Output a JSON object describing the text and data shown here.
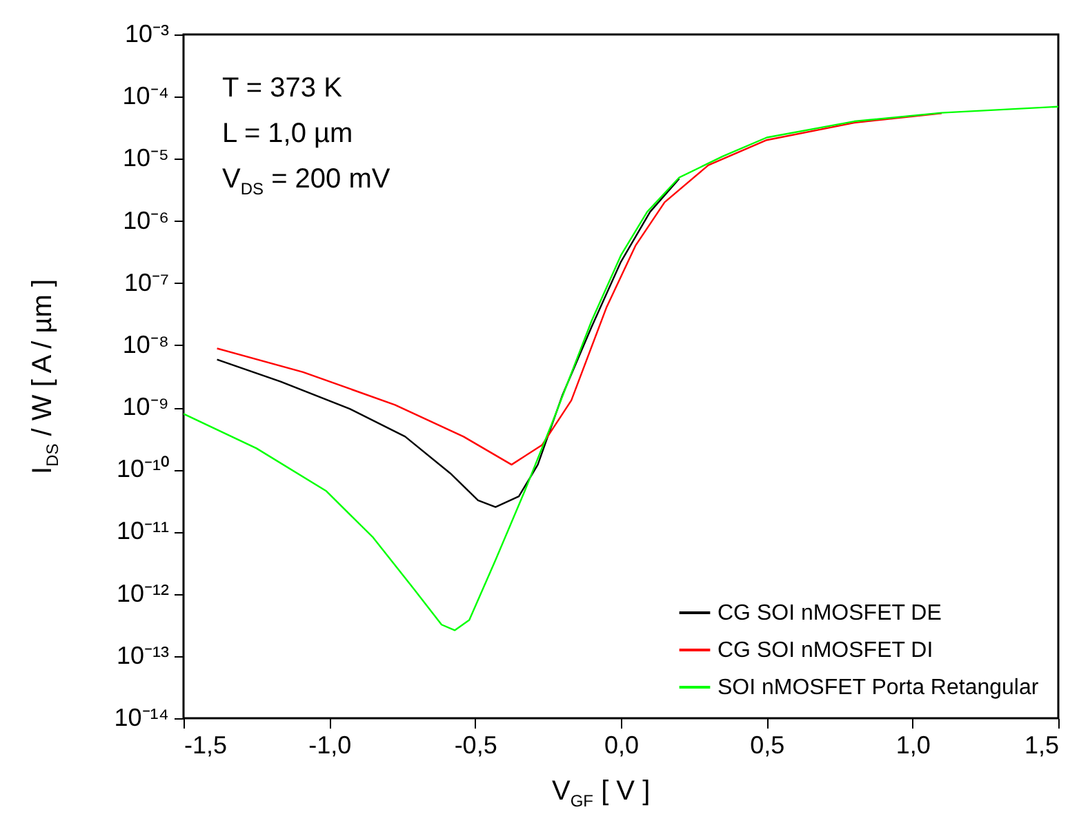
{
  "chart_data": {
    "type": "line",
    "xlabel": "V$_{GF}$ [ V ]",
    "ylabel": "I$_{DS}$ / W [ A / µm ]",
    "annotations": [
      "T = 373 K",
      "L = 1,0 µm",
      "V$_{DS}$ = 200 mV"
    ],
    "log": "y",
    "grid": false,
    "legend": "bottom right",
    "line_style": "solid",
    "xlim": [
      -1.5,
      1.5
    ],
    "xticks": [
      {
        "value": -1.5,
        "label": "-1,5"
      },
      {
        "value": -1.0,
        "label": "-1,0"
      },
      {
        "value": -0.5,
        "label": "-0,5"
      },
      {
        "value": 0.0,
        "label": "0,0"
      },
      {
        "value": 0.5,
        "label": "0,5"
      },
      {
        "value": 1.0,
        "label": "1,0"
      },
      {
        "value": 1.5,
        "label": "1,5"
      }
    ],
    "ylim": [
      1e-14,
      0.001
    ],
    "yticks": [
      {
        "value": 1e-14,
        "label": "10⁻¹⁴"
      },
      {
        "value": 1e-13,
        "label": "10⁻¹³"
      },
      {
        "value": 1e-12,
        "label": "10⁻¹²"
      },
      {
        "value": 1e-11,
        "label": "10⁻¹¹"
      },
      {
        "value": 1e-10,
        "label": "10⁻¹⁰"
      },
      {
        "value": 1e-09,
        "label": "10⁻⁹"
      },
      {
        "value": 1e-08,
        "label": "10⁻⁸"
      },
      {
        "value": 1e-07,
        "label": "10⁻⁷"
      },
      {
        "value": 1e-06,
        "label": "10⁻⁶"
      },
      {
        "value": 1e-05,
        "label": "10⁻⁵"
      },
      {
        "value": 0.0001,
        "label": "10⁻⁴"
      },
      {
        "value": 0.001,
        "label": "10⁻³"
      }
    ],
    "series": [
      {
        "name": "CG SOI nMOSFET DE",
        "color": "#000000",
        "x": [
          -1.385,
          -1.167,
          -0.93,
          -0.74,
          -0.585,
          -0.49,
          -0.43,
          -0.35,
          -0.285,
          -0.2,
          -0.1,
          0.0,
          0.1,
          0.2
        ],
        "values": [
          5.9e-09,
          2.6e-09,
          9.5e-10,
          3.4e-10,
          8.7e-11,
          3.2e-11,
          2.5e-11,
          3.7e-11,
          1.2e-10,
          1.6e-09,
          2e-08,
          2.2e-07,
          1.4e-06,
          4.8e-06
        ]
      },
      {
        "name": "CG SOI nMOSFET DI",
        "color": "#ff0000",
        "x": [
          -1.385,
          -1.09,
          -0.775,
          -0.54,
          -0.375,
          -0.27,
          -0.17,
          -0.05,
          0.05,
          0.15,
          0.3,
          0.5,
          0.8,
          1.1
        ],
        "values": [
          8.9e-09,
          3.7e-09,
          1.1e-09,
          3.4e-10,
          1.2e-10,
          2.5e-10,
          1.3e-09,
          4e-08,
          4e-07,
          2e-06,
          7.9e-06,
          2e-05,
          3.8e-05,
          5.4e-05
        ]
      },
      {
        "name": "SOI nMOSFET Porta Retangular",
        "color": "#00ff00",
        "x": [
          -1.5,
          -1.25,
          -1.01,
          -0.85,
          -0.71,
          -0.615,
          -0.57,
          -0.52,
          -0.43,
          -0.33,
          -0.236,
          -0.1,
          0.0,
          0.09,
          0.2,
          0.35,
          0.5,
          0.8,
          1.1,
          1.5
        ],
        "values": [
          7.9e-10,
          2.2e-10,
          4.5e-11,
          8.1e-12,
          1.2e-12,
          3.2e-13,
          2.6e-13,
          3.8e-13,
          3.5e-12,
          4.5e-11,
          5.6e-10,
          2.5e-08,
          2.8e-07,
          1.4e-06,
          5e-06,
          1.1e-05,
          2.2e-05,
          4e-05,
          5.5e-05,
          6.9e-05
        ]
      }
    ]
  }
}
